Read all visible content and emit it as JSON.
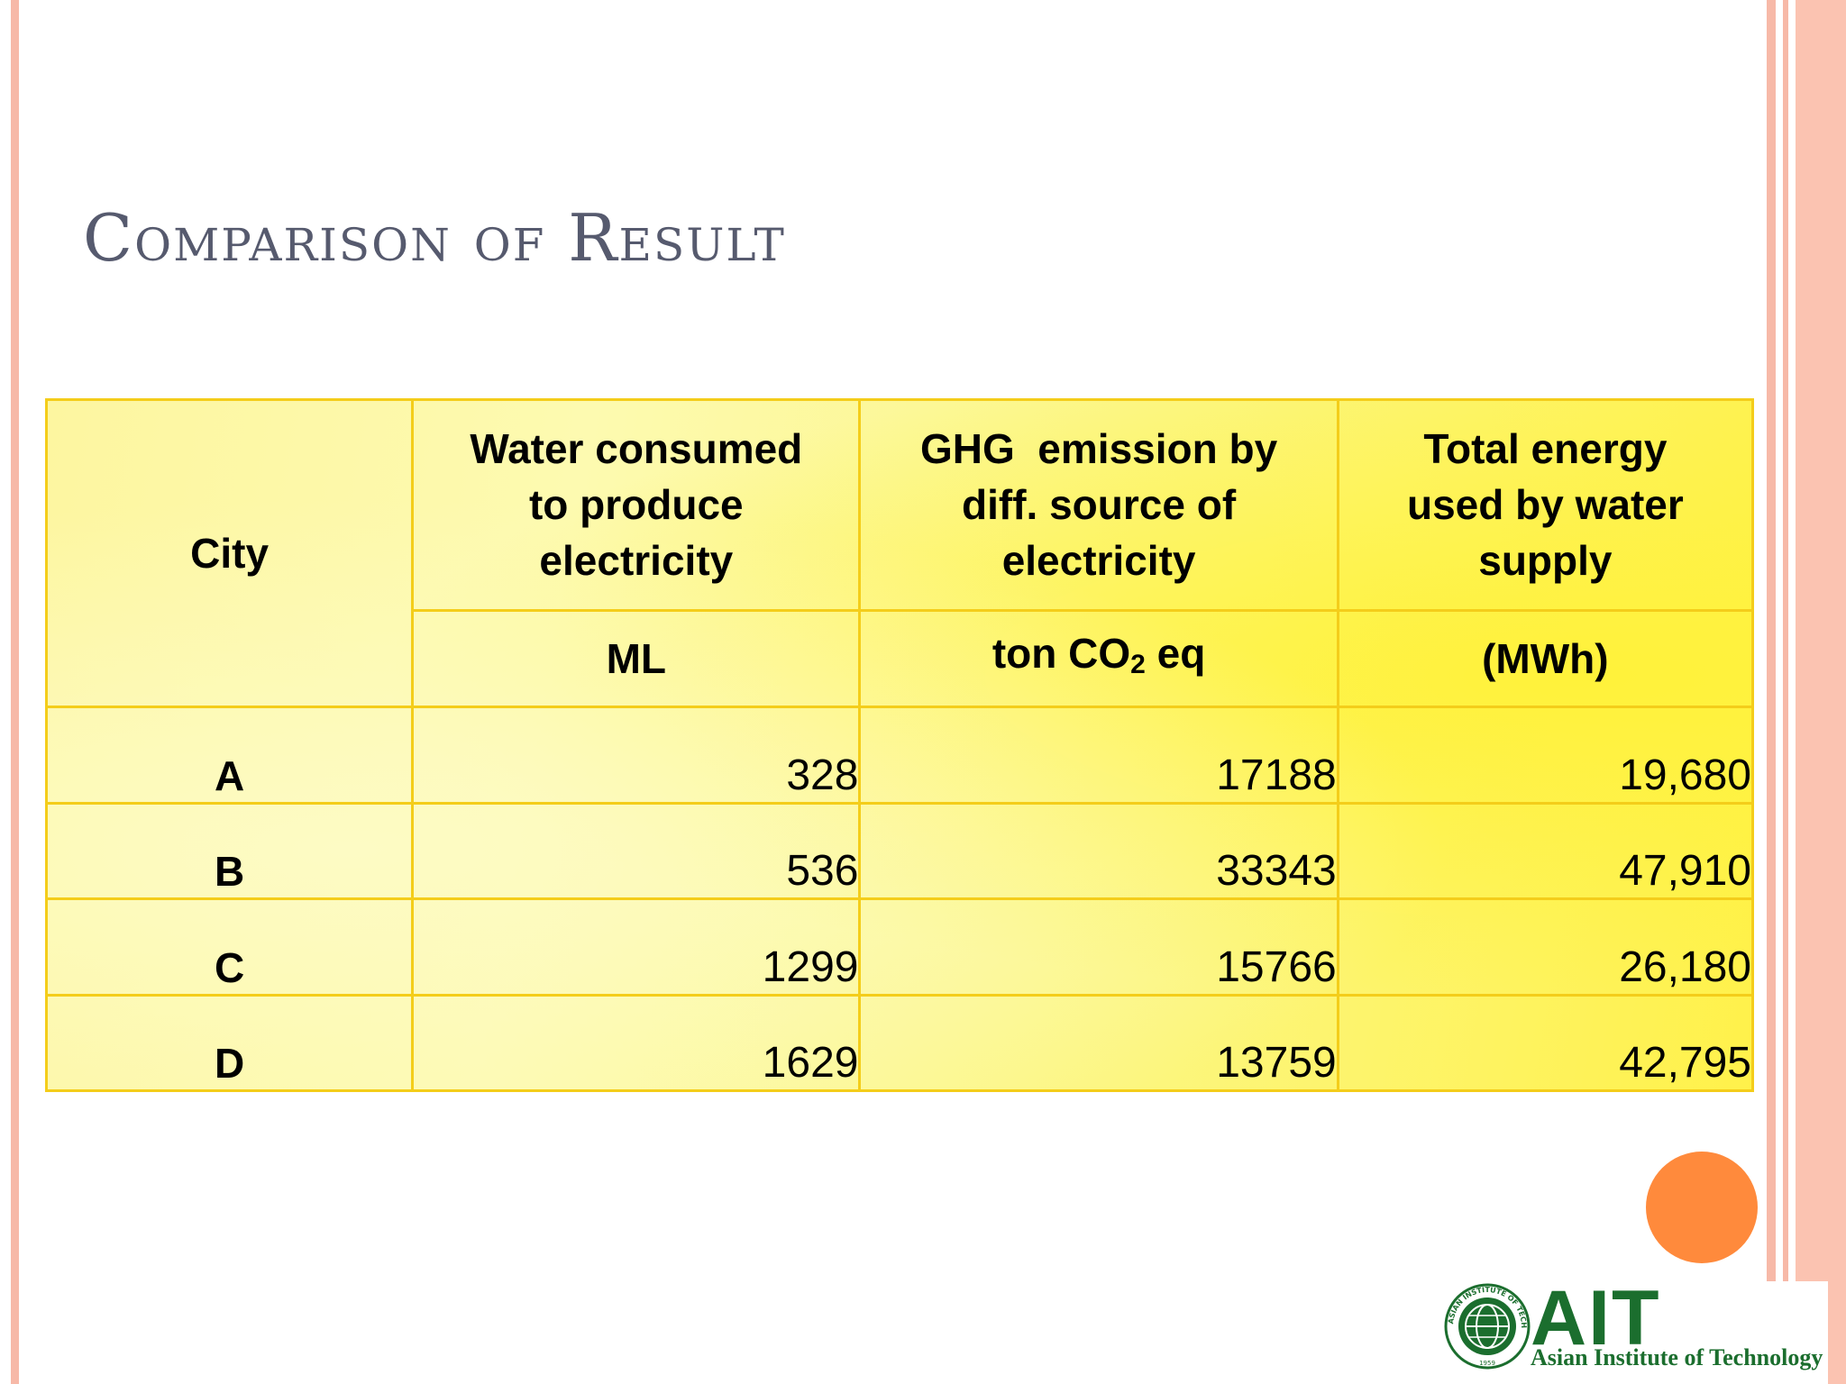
{
  "slide": {
    "title": "Comparison of Result"
  },
  "table": {
    "headers": {
      "city": "City",
      "water_lines": [
        "Water consumed",
        "to produce",
        "electricity"
      ],
      "ghg_lines": [
        "GHG  emission by",
        "diff. source of",
        "electricity"
      ],
      "energy_lines": [
        "Total energy",
        "used by water",
        "supply"
      ]
    },
    "units": {
      "water": "ML",
      "ghg_prefix": "ton CO",
      "ghg_sub": "2",
      "ghg_suffix": " eq",
      "energy": "(MWh)"
    },
    "rows": [
      {
        "city": "A",
        "water": "328",
        "ghg": "17188",
        "energy": "19,680"
      },
      {
        "city": "B",
        "water": "536",
        "ghg": "33343",
        "energy": "47,910"
      },
      {
        "city": "C",
        "water": "1299",
        "ghg": "15766",
        "energy": "26,180"
      },
      {
        "city": "D",
        "water": "1629",
        "ghg": "13759",
        "energy": "42,795"
      }
    ]
  },
  "logo": {
    "wordmark": "AIT",
    "subtitle": "Asian Institute of Technology",
    "seal_text": "ASIAN INSTITUTE OF TECHNOLOGY",
    "seal_year": "1959"
  },
  "colors": {
    "title": "#565a6e",
    "table_border": "#f4cd1a",
    "accent_dot": "#ff8a3c",
    "stripe": "#f7b9a8",
    "logo_green": "#1b6e2e"
  }
}
